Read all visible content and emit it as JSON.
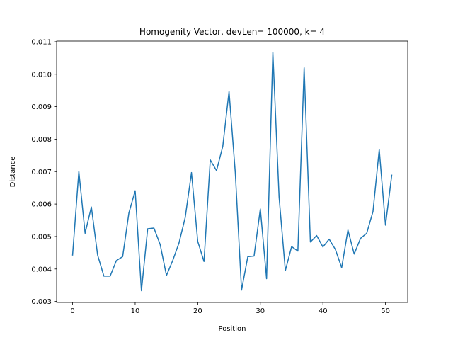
{
  "chart_data": {
    "type": "line",
    "title": "Homogenity Vector, devLen= 100000, k= 4",
    "xlabel": "Position",
    "ylabel": "Distance",
    "xlim": [
      -2.55,
      53.55
    ],
    "ylim": [
      0.00297,
      0.01102
    ],
    "xticks": [
      0,
      10,
      20,
      30,
      40,
      50
    ],
    "xtick_labels": [
      "0",
      "10",
      "20",
      "30",
      "40",
      "50"
    ],
    "yticks": [
      0.003,
      0.004,
      0.005,
      0.006,
      0.007,
      0.008,
      0.009,
      0.01,
      0.011
    ],
    "ytick_labels": [
      "0.003",
      "0.004",
      "0.005",
      "0.006",
      "0.007",
      "0.008",
      "0.009",
      "0.010",
      "0.011"
    ],
    "grid": false,
    "legend": "none",
    "line_color": "#1f77b4",
    "x": [
      0,
      1,
      2,
      3,
      4,
      5,
      6,
      7,
      8,
      9,
      10,
      11,
      12,
      13,
      14,
      15,
      16,
      17,
      18,
      19,
      20,
      21,
      22,
      23,
      24,
      25,
      26,
      27,
      28,
      29,
      30,
      31,
      32,
      33,
      34,
      35,
      36,
      37,
      38,
      39,
      40,
      41,
      42,
      43,
      44,
      45,
      46,
      47,
      48,
      49,
      50,
      51
    ],
    "series": [
      {
        "values": [
          0.00443,
          0.00701,
          0.0051,
          0.00591,
          0.00443,
          0.00378,
          0.00378,
          0.00426,
          0.00438,
          0.00573,
          0.00641,
          0.00333,
          0.00524,
          0.00526,
          0.00475,
          0.0038,
          0.00426,
          0.0048,
          0.00559,
          0.00697,
          0.00485,
          0.00423,
          0.00736,
          0.00703,
          0.00778,
          0.00947,
          0.00697,
          0.00335,
          0.00438,
          0.0044,
          0.00585,
          0.0037,
          0.01068,
          0.00621,
          0.00395,
          0.00469,
          0.00455,
          0.0102,
          0.00483,
          0.00503,
          0.00468,
          0.00492,
          0.0046,
          0.00404,
          0.0052,
          0.00446,
          0.00494,
          0.0051,
          0.00577,
          0.00768,
          0.00535,
          0.00689
        ]
      }
    ]
  }
}
